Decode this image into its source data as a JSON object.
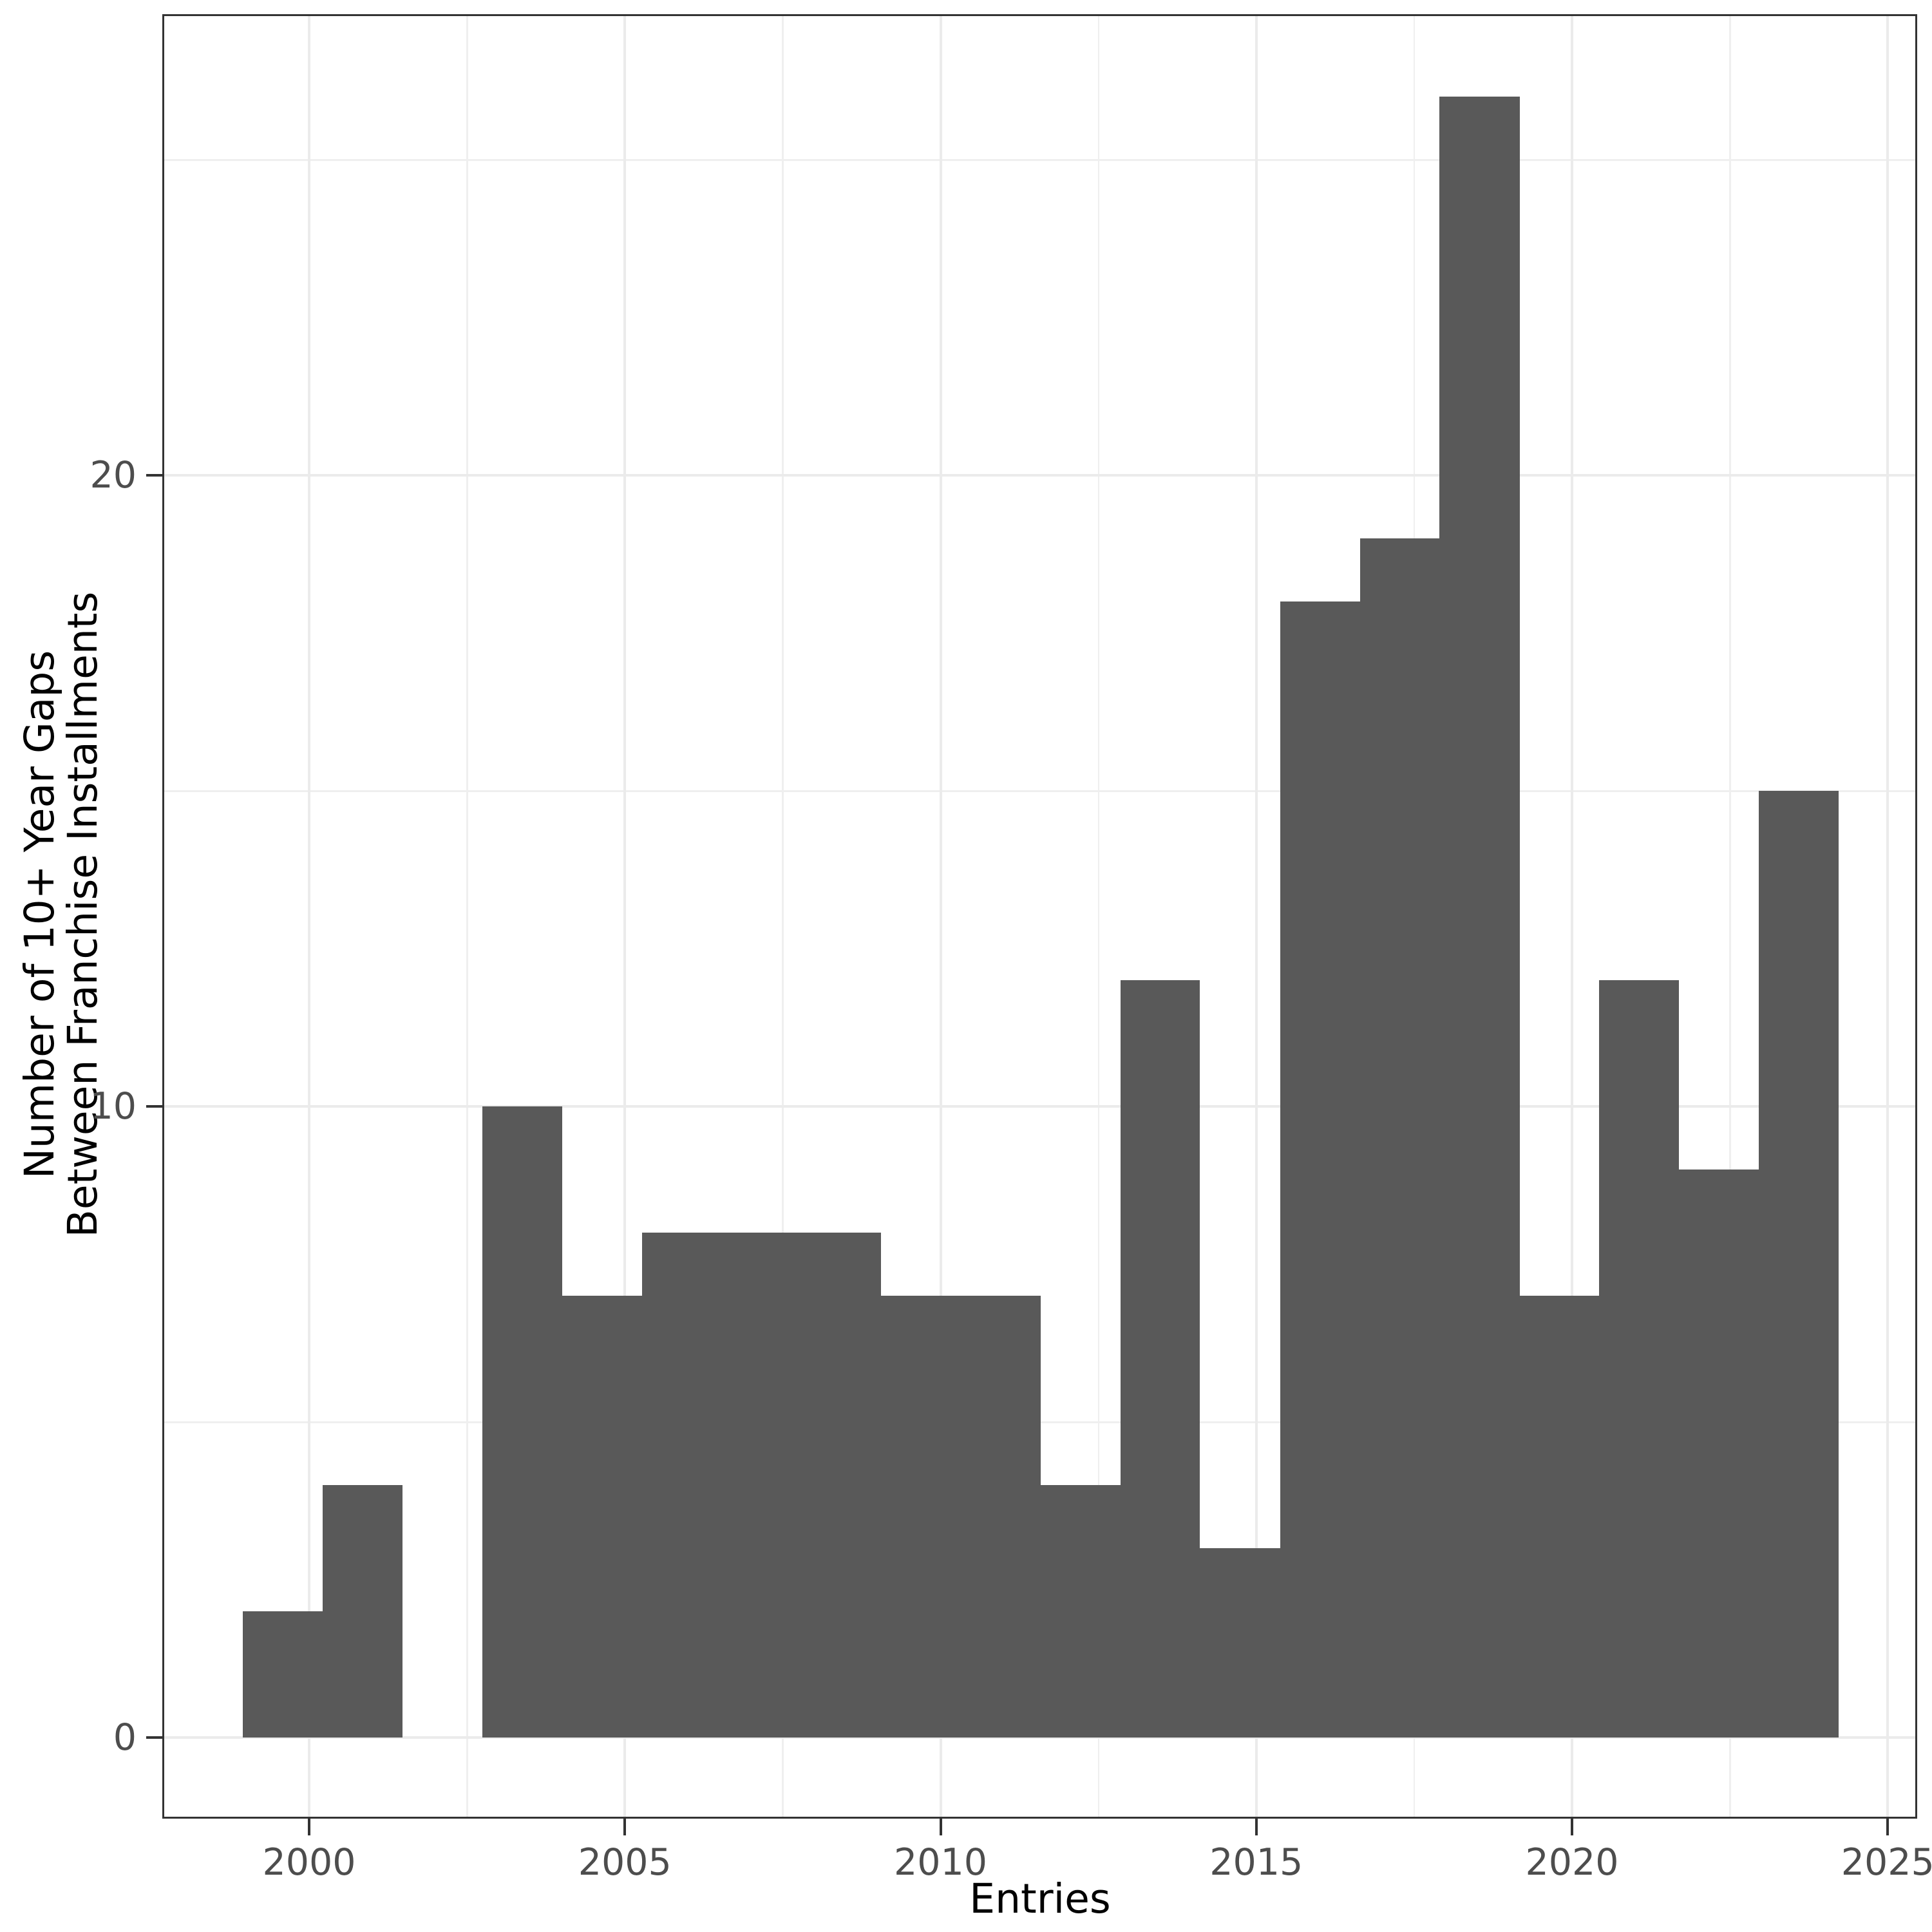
{
  "chart_data": {
    "type": "bar",
    "subtype": "histogram",
    "title": "",
    "xlabel": "Entries",
    "ylabel": "Number of 10+ Year Gaps\nBetween Franchise Installments",
    "ylabel_line1": "Number of 10+ Year Gaps",
    "ylabel_line2": "Between Franchise Installments",
    "x_tick_labels": [
      "2000",
      "2005",
      "2010",
      "2015",
      "2020",
      "2025"
    ],
    "x_tick_values": [
      2000,
      2005,
      2010,
      2015,
      2020,
      2025
    ],
    "y_tick_labels": [
      "0",
      "10",
      "20"
    ],
    "y_tick_values": [
      0,
      10,
      20
    ],
    "y_minor_tick_values": [
      5,
      15,
      25
    ],
    "x_minor_tick_values": [
      2002.5,
      2007.5,
      2012.5,
      2017.5,
      2022.5
    ],
    "xlim": [
      1997.68,
      2025.52
    ],
    "ylim": [
      -1.29,
      27.31
    ],
    "grid": "on",
    "legend": "none",
    "bar_color": "#595959",
    "panel_border_color": "#333333",
    "grid_color": "#ebebeb",
    "tick_label_color": "#4d4d4d",
    "bin_edges": [
      1998.95,
      2000.21,
      2001.48,
      2002.74,
      2004.01,
      2005.27,
      2006.53,
      2007.8,
      2009.06,
      2010.32,
      2011.59,
      2012.85,
      2014.11,
      2015.38,
      2016.64,
      2017.9,
      2019.17,
      2020.43,
      2021.69,
      2022.96,
      2024.22
    ],
    "counts": [
      2,
      4,
      0,
      10,
      7,
      8,
      8,
      8,
      7,
      7,
      4,
      12,
      3,
      18,
      19,
      26,
      7,
      12,
      9,
      15
    ]
  }
}
